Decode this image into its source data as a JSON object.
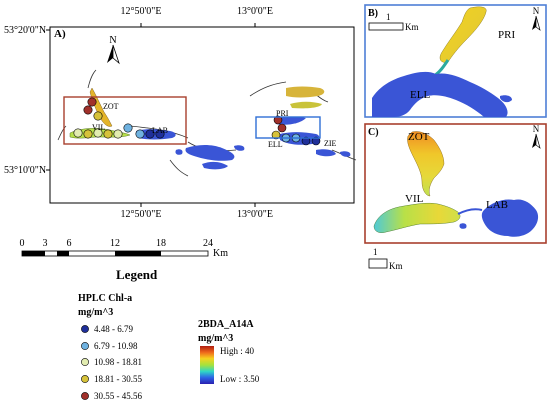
{
  "main_map": {
    "panel_label": "A)",
    "top_ticks": [
      "12°50'0\"E",
      "13°0'0\"E"
    ],
    "left_ticks": [
      "53°20'0\"N",
      "53°10'0\"N"
    ],
    "bottom_ticks": [
      "12°50'0\"E",
      "13°0'0\"E"
    ],
    "north_label": "N",
    "lakes": [
      "ZOT",
      "VIL",
      "LAB",
      "PRI",
      "ELL",
      "ZIE"
    ]
  },
  "scale_bar": {
    "ticks": [
      "0",
      "3",
      "6",
      "12",
      "18",
      "24"
    ],
    "unit": "Km"
  },
  "inset_b": {
    "panel_label": "B)",
    "scale_value": "1",
    "scale_unit": "Km",
    "north_label": "N",
    "lakes": [
      "PRI",
      "ELL"
    ]
  },
  "inset_c": {
    "panel_label": "C)",
    "scale_value": "1",
    "scale_unit": "Km",
    "north_label": "N",
    "lakes": [
      "ZOT",
      "VIL",
      "LAB"
    ]
  },
  "legend": {
    "title": "Legend",
    "points_title": "HPLC Chl-a",
    "points_unit": "mg/m^3",
    "classes": [
      {
        "label": "4.48 - 6.79",
        "color": "#1f2f9a"
      },
      {
        "label": "6.79 - 10.98",
        "color": "#6fb2e0"
      },
      {
        "label": "10.98 - 18.81",
        "color": "#e2ecb0"
      },
      {
        "label": "18.81 - 30.55",
        "color": "#d6c23a"
      },
      {
        "label": "30.55 - 45.56",
        "color": "#a0302a"
      }
    ],
    "raster_title": "2BDA_A14A",
    "raster_unit": "mg/m^3",
    "raster_high": "High : 40",
    "raster_low": "Low : 3.50",
    "ramp_colors": [
      "#b01c10",
      "#ef6a1c",
      "#f6d21f",
      "#a6e23c",
      "#2fd6c6",
      "#2d64e6",
      "#2a1fb0"
    ]
  },
  "colors": {
    "water_blue": "#3a55d6",
    "inset_b_frame": "#4e7fd6",
    "inset_c_frame": "#a8402e",
    "zot_box": "#a8402e",
    "pri_box": "#2f6fd6"
  }
}
